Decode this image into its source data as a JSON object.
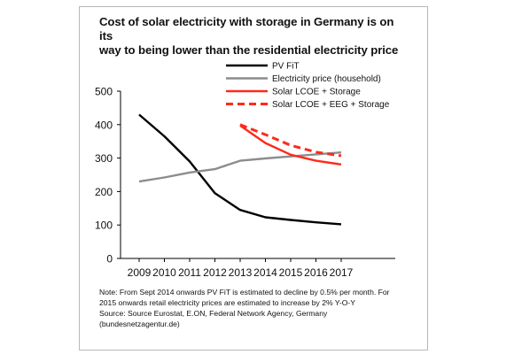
{
  "header": {
    "title_line1": "Cost of solar electricity with storage in Germany is on its",
    "title_line2": "way to being lower than the residential electricity price"
  },
  "notes": {
    "line1": "Note: From Sept 2014 onwards PV FiT is estimated to decline by 0.5% per month. For",
    "line2": "2015 onwards retail electricity prices are estimated to increase by 2% Y-O-Y",
    "line3": "Source: Source Eurostat, E.ON, Federal Network Agency, Germany",
    "line4": "(bundesnetzagentur.de)"
  },
  "chart_data": {
    "type": "line",
    "title": "Cost of solar electricity with storage in Germany is on its way to being lower than the residential electricity price",
    "xlabel": "",
    "ylabel": "",
    "x": [
      2009,
      2010,
      2011,
      2012,
      2013,
      2014,
      2015,
      2016,
      2017
    ],
    "ylim": [
      0,
      500
    ],
    "yticks": [
      0,
      100,
      200,
      300,
      400,
      500
    ],
    "grid": false,
    "legend_position": "top-right",
    "series": [
      {
        "name": "PV FiT",
        "color": "#000000",
        "style": "solid",
        "values": [
          430,
          365,
          290,
          195,
          145,
          123,
          115,
          108,
          102
        ]
      },
      {
        "name": "Electricity price (household)",
        "color": "#8c8c8c",
        "style": "solid",
        "values": [
          230,
          242,
          257,
          267,
          292,
          299,
          305,
          311,
          317
        ]
      },
      {
        "name": "Solar LCOE + Storage",
        "color": "#ff2a1a",
        "style": "solid",
        "values": [
          null,
          null,
          null,
          null,
          397,
          345,
          310,
          292,
          281
        ]
      },
      {
        "name": "Solar LCOE + EEG + Storage",
        "color": "#ff2a1a",
        "style": "dashed",
        "values": [
          null,
          null,
          null,
          null,
          400,
          370,
          338,
          318,
          307
        ]
      }
    ]
  }
}
